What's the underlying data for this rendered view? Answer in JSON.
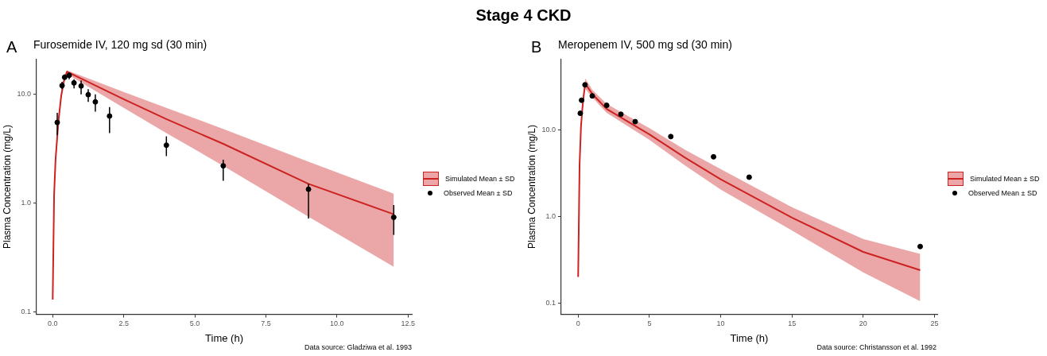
{
  "chart_data": [
    {
      "type": "line",
      "subtitle": "Furosemide IV, 120 mg sd (30 min)",
      "xlabel": "Time (h)",
      "ylabel": "Plasma Concentration (mg/L)",
      "annotations": [
        "A",
        "Data source: Gladziwa et al. 1993"
      ],
      "log": true,
      "grid": false,
      "legend": "right",
      "xlim": [
        -0.57,
        12.64
      ],
      "xticks": [
        {
          "value": 0,
          "label": "0.0"
        },
        {
          "value": 2.5,
          "label": "2.5"
        },
        {
          "value": 5,
          "label": "5.0"
        },
        {
          "value": 7.5,
          "label": "7.5"
        },
        {
          "value": 10,
          "label": "10.0"
        },
        {
          "value": 12.5,
          "label": "12.5"
        }
      ],
      "ylim": [
        0.095,
        21
      ],
      "yticks": [
        {
          "value": 0.1,
          "label": "0.1"
        },
        {
          "value": 1,
          "label": "1.0"
        },
        {
          "value": 10,
          "label": "10.0"
        }
      ],
      "series": [
        {
          "name": "Simulated Mean ± SD",
          "type": "line",
          "color": "#cc2222",
          "marker": "none",
          "x": [
            0,
            0.05,
            0.1,
            0.2,
            0.3,
            0.4,
            0.5,
            1,
            2.5,
            4,
            6,
            9,
            12
          ],
          "values": [
            0.13,
            1.2,
            2.5,
            5.6,
            9.7,
            13.4,
            16.1,
            13.9,
            9.0,
            5.9,
            3.5,
            1.5,
            0.79
          ],
          "lower": [
            0.12,
            1.0,
            2.2,
            5.0,
            9.0,
            12.6,
            15.3,
            12.8,
            7.5,
            4.4,
            2.2,
            0.75,
            0.26
          ],
          "upper": [
            0.14,
            1.4,
            2.9,
            6.2,
            10.5,
            14.3,
            16.6,
            14.8,
            10.5,
            7.5,
            4.8,
            2.4,
            1.22
          ]
        },
        {
          "name": "Observed Mean ± SD",
          "type": "scatter",
          "color": "#000000",
          "marker": "circle",
          "x": [
            0.16,
            0.33,
            0.42,
            0.58,
            0.75,
            1,
            1.25,
            1.5,
            2,
            4,
            6,
            9,
            12
          ],
          "values": [
            5.5,
            12.0,
            14.3,
            14.9,
            12.7,
            11.9,
            9.9,
            8.5,
            6.3,
            3.4,
            2.2,
            1.34,
            0.74
          ],
          "errors": [
            [
              4.2,
              6.75
            ],
            [
              11.1,
              13
            ],
            [
              13.5,
              15.2
            ],
            [
              13.7,
              15.7
            ],
            [
              11.3,
              13.7
            ],
            [
              9.95,
              13.4
            ],
            [
              8.5,
              11.1
            ],
            [
              6.9,
              9.95
            ],
            [
              4.4,
              7.6
            ],
            [
              2.7,
              4.1
            ],
            [
              1.6,
              2.5
            ],
            [
              0.72,
              1.5
            ],
            [
              0.51,
              0.96
            ]
          ]
        }
      ]
    },
    {
      "type": "line",
      "title": "Stage 4 CKD",
      "subtitle": "Meropenem IV, 500 mg sd (30 min)",
      "xlabel": "Time (h)",
      "ylabel": "Plasma Concentration (mg/L)",
      "annotations": [
        "B",
        "Data source: Christansson et al. 1992"
      ],
      "log": true,
      "grid": false,
      "legend": "right",
      "xlim": [
        -1.19,
        25.2
      ],
      "xticks": [
        0,
        5,
        10,
        15,
        20,
        25
      ],
      "ylim": [
        0.074,
        66
      ],
      "yticks": [
        {
          "value": 0.1,
          "label": "0.1"
        },
        {
          "value": 1,
          "label": "1.0"
        },
        {
          "value": 10,
          "label": "10.0"
        }
      ],
      "series": [
        {
          "name": "Simulated Mean ± SD",
          "type": "line",
          "color": "#cc2222",
          "marker": "none",
          "x": [
            0,
            0.1,
            0.2,
            0.3,
            0.4,
            0.5,
            1,
            2,
            5,
            7.5,
            10,
            15,
            20,
            24
          ],
          "values": [
            0.2,
            4.0,
            11,
            18,
            26,
            34.4,
            26,
            17.5,
            8.9,
            4.8,
            2.7,
            0.97,
            0.39,
            0.24
          ],
          "lower": [
            0.19,
            3.6,
            10,
            16.5,
            23,
            30,
            23.7,
            15.8,
            7.7,
            3.9,
            2.05,
            0.69,
            0.226,
            0.105
          ],
          "upper": [
            0.21,
            4.4,
            12,
            19.5,
            29,
            39.4,
            29,
            20,
            10.5,
            5.9,
            3.54,
            1.28,
            0.55,
            0.37
          ]
        },
        {
          "name": "Observed Mean ± SD",
          "type": "scatter",
          "color": "#000000",
          "marker": "circle",
          "x": [
            0.15,
            0.24,
            0.48,
            0.99,
            2,
            3,
            4,
            6.5,
            9.5,
            12,
            24
          ],
          "values": [
            15.6,
            22.1,
            33.3,
            24.8,
            19.3,
            15.2,
            12.5,
            8.4,
            4.9,
            2.85,
            0.45
          ]
        }
      ]
    }
  ]
}
